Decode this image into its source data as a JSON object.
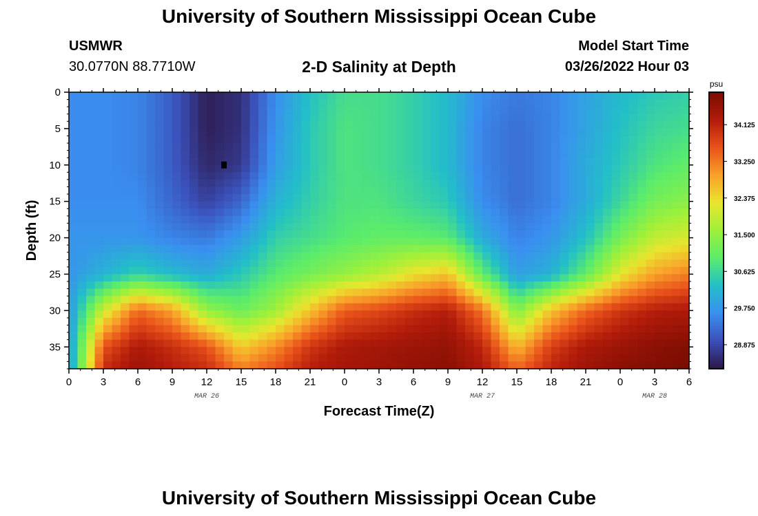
{
  "header": {
    "title": "University of Southern Mississippi Ocean Cube",
    "station": "USMWR",
    "coords": "30.0770N  88.7710W",
    "subtitle": "2-D Salinity at Depth",
    "model_start_label": "Model Start Time",
    "model_start_value": "03/26/2022 Hour 03"
  },
  "footer": {
    "title": "University of Southern Mississippi Ocean Cube"
  },
  "colors": {
    "colormap": [
      "#2c1747",
      "#3b4fb8",
      "#3a8ff0",
      "#22bfc8",
      "#5bec6b",
      "#9ff03a",
      "#e9e52e",
      "#f9a12a",
      "#e8521a",
      "#b11b0a",
      "#7a0c02"
    ]
  },
  "chart_data": {
    "type": "heatmap",
    "title": "2-D Salinity at Depth",
    "xlabel": "Forecast Time(Z)",
    "ylabel": "Depth (ft)",
    "colorbar_unit": "psu",
    "x_ticks": [
      "0",
      "3",
      "6",
      "9",
      "12",
      "15",
      "18",
      "21",
      "0",
      "3",
      "6",
      "9",
      "12",
      "15",
      "18",
      "21",
      "0",
      "3",
      "6"
    ],
    "date_labels": [
      {
        "label": "MAR 26",
        "hour": 12
      },
      {
        "label": "MAR 27",
        "hour": 36
      },
      {
        "label": "MAR 28",
        "hour": 51
      }
    ],
    "y_ticks": [
      0,
      5,
      10,
      15,
      20,
      25,
      30,
      35
    ],
    "xlim": [
      0,
      54
    ],
    "ylim": [
      0,
      38
    ],
    "colorbar_ticks": [
      34.125,
      33.25,
      32.375,
      31.5,
      30.625,
      29.75,
      28.875
    ],
    "colorbar_range": [
      28.3,
      34.9
    ],
    "marker": {
      "hour": 13.5,
      "depth": 10
    },
    "x_hours": [
      0,
      3,
      6,
      9,
      12,
      15,
      18,
      21,
      24,
      27,
      30,
      33,
      36,
      39,
      42,
      45,
      48,
      51,
      54
    ],
    "depths_ft": [
      0,
      5,
      10,
      15,
      20,
      25,
      30,
      35,
      38
    ],
    "salinity": [
      [
        29.6,
        29.6,
        29.6,
        29.6,
        29.7,
        29.7,
        29.7,
        29.7,
        29.7
      ],
      [
        29.6,
        29.6,
        29.6,
        29.6,
        29.7,
        30.1,
        32.0,
        33.6,
        34.0
      ],
      [
        29.5,
        29.5,
        29.5,
        29.6,
        29.7,
        30.5,
        33.4,
        34.3,
        34.5
      ],
      [
        29.1,
        29.1,
        29.1,
        29.2,
        29.5,
        30.2,
        32.9,
        34.0,
        34.2
      ],
      [
        28.4,
        28.4,
        28.5,
        28.8,
        29.4,
        30.0,
        31.5,
        33.6,
        34.0
      ],
      [
        28.6,
        28.6,
        28.7,
        29.2,
        29.8,
        30.4,
        31.1,
        32.5,
        33.2
      ],
      [
        29.6,
        29.7,
        29.8,
        30.1,
        30.5,
        30.9,
        31.6,
        33.1,
        33.6
      ],
      [
        30.3,
        30.4,
        30.4,
        30.5,
        30.7,
        31.2,
        32.6,
        33.9,
        34.2
      ],
      [
        30.7,
        30.8,
        30.8,
        30.8,
        30.9,
        31.5,
        33.5,
        34.3,
        34.4
      ],
      [
        30.7,
        30.7,
        30.7,
        30.8,
        31.0,
        31.8,
        33.7,
        34.4,
        34.5
      ],
      [
        30.5,
        30.5,
        30.5,
        30.6,
        31.0,
        32.3,
        34.0,
        34.5,
        34.6
      ],
      [
        30.2,
        30.2,
        30.2,
        30.4,
        30.9,
        32.6,
        34.2,
        34.6,
        34.7
      ],
      [
        29.6,
        29.5,
        29.5,
        29.6,
        30.0,
        31.0,
        33.3,
        34.1,
        34.3
      ],
      [
        29.4,
        29.3,
        29.3,
        29.3,
        29.5,
        29.8,
        31.3,
        32.7,
        33.4
      ],
      [
        29.5,
        29.5,
        29.5,
        29.5,
        29.7,
        30.1,
        32.6,
        33.8,
        34.1
      ],
      [
        29.9,
        29.9,
        30.0,
        30.0,
        30.3,
        31.0,
        33.4,
        34.3,
        34.5
      ],
      [
        30.2,
        30.3,
        30.4,
        30.6,
        31.2,
        32.2,
        33.9,
        34.5,
        34.7
      ],
      [
        30.4,
        30.6,
        30.8,
        31.2,
        31.9,
        32.9,
        34.2,
        34.7,
        34.8
      ],
      [
        30.5,
        30.7,
        31.0,
        31.4,
        32.1,
        33.2,
        34.3,
        34.8,
        34.9
      ]
    ]
  }
}
